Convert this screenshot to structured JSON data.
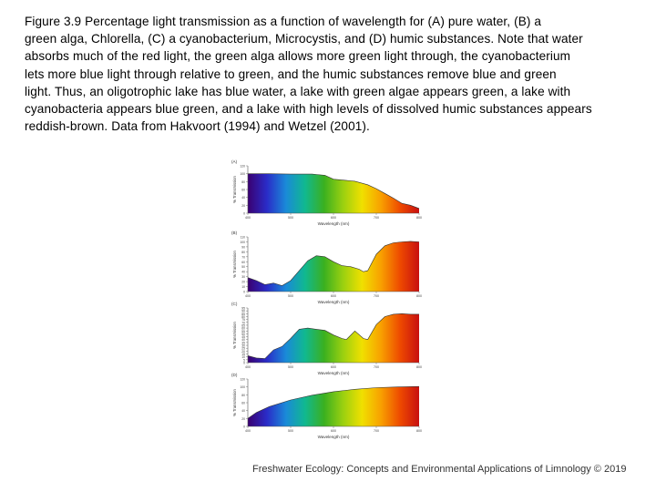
{
  "caption": {
    "lines": [
      "Figure 3.9 Percentage light transmission as a function of wavelength for (A) pure water, (B) a",
      "green alga, Chlorella, (C) a cyanobacterium, Microcystis, and (D) humic substances. Note that water",
      "absorbs much of the red light, the green alga allows more green light through, the cyanobacterium",
      "lets more blue light through relative to green, and the humic substances remove blue and green",
      "light. Thus, an oligotrophic lake has blue water, a lake with green algae appears green, a lake with",
      "cyanobacteria appears blue green, and a lake with high levels of dissolved humic substances appears",
      "reddish-brown. Data from Hakvoort (1994) and Wetzel (2001)."
    ]
  },
  "footer": "Freshwater Ecology: Concepts and Environmental Applications of Limnology © 2019",
  "spectrum_colors": [
    "#3a0070",
    "#2a2cc8",
    "#1a8ad8",
    "#10b890",
    "#3ab020",
    "#9ad010",
    "#f0e000",
    "#f8a000",
    "#ee4a00",
    "#c81010"
  ],
  "chart_data": [
    {
      "type": "area",
      "panel_label": "(A)",
      "xlabel": "Wavelength (nm)",
      "ylabel": "% Transmission",
      "x_ticks": [
        "400",
        "500",
        "600",
        "700",
        "800"
      ],
      "y_ticks": [
        "0",
        "20",
        "40",
        "60",
        "80",
        "100",
        "120"
      ],
      "xlim": [
        400,
        800
      ],
      "ylim": [
        0,
        120
      ],
      "x": [
        400,
        450,
        500,
        550,
        560,
        580,
        600,
        620,
        650,
        680,
        700,
        720,
        740,
        760,
        780,
        800
      ],
      "values": [
        100,
        100,
        99,
        99,
        98,
        96,
        86,
        84,
        81,
        72,
        62,
        50,
        38,
        25,
        20,
        12
      ]
    },
    {
      "type": "area",
      "panel_label": "(B)",
      "xlabel": "Wavelength (nm)",
      "ylabel": "% Transmission",
      "x_ticks": [
        "400",
        "500",
        "600",
        "700",
        "800"
      ],
      "y_ticks": [
        "0",
        "10",
        "20",
        "30",
        "40",
        "50",
        "60",
        "70",
        "80",
        "90",
        "100",
        "110"
      ],
      "xlim": [
        400,
        800
      ],
      "ylim": [
        0,
        110
      ],
      "x": [
        400,
        420,
        440,
        460,
        480,
        500,
        520,
        540,
        560,
        580,
        600,
        620,
        640,
        660,
        670,
        680,
        700,
        720,
        740,
        760,
        780,
        800
      ],
      "values": [
        28,
        22,
        14,
        17,
        12,
        22,
        42,
        62,
        72,
        70,
        60,
        52,
        50,
        45,
        40,
        42,
        75,
        92,
        98,
        100,
        101,
        100
      ]
    },
    {
      "type": "area",
      "panel_label": "(C)",
      "xlabel": "Wavelength (nm)",
      "ylabel": "% Transmission",
      "x_ticks": [
        "400",
        "500",
        "600",
        "700",
        "800"
      ],
      "y_ticks": [
        "0",
        "5",
        "10",
        "15",
        "20",
        "25",
        "30",
        "35",
        "40",
        "45",
        "50",
        "55",
        "60",
        "65",
        "70",
        "75",
        "80",
        "85",
        "90",
        "95"
      ],
      "xlim": [
        400,
        800
      ],
      "ylim": [
        0,
        95
      ],
      "x": [
        400,
        420,
        440,
        460,
        480,
        500,
        520,
        540,
        560,
        580,
        600,
        620,
        630,
        650,
        670,
        680,
        700,
        720,
        740,
        760,
        780,
        800
      ],
      "values": [
        12,
        8,
        7,
        22,
        28,
        42,
        58,
        60,
        58,
        56,
        48,
        42,
        40,
        55,
        42,
        40,
        66,
        80,
        84,
        85,
        84,
        84
      ]
    },
    {
      "type": "area",
      "panel_label": "(D)",
      "xlabel": "Wavelength (nm)",
      "ylabel": "% Transmission",
      "x_ticks": [
        "400",
        "500",
        "600",
        "700",
        "800"
      ],
      "y_ticks": [
        "0",
        "20",
        "40",
        "60",
        "80",
        "100",
        "120"
      ],
      "xlim": [
        400,
        800
      ],
      "ylim": [
        0,
        120
      ],
      "x": [
        400,
        420,
        450,
        500,
        550,
        600,
        650,
        700,
        750,
        800
      ],
      "values": [
        20,
        35,
        50,
        67,
        79,
        88,
        94,
        98,
        100,
        101
      ]
    }
  ]
}
